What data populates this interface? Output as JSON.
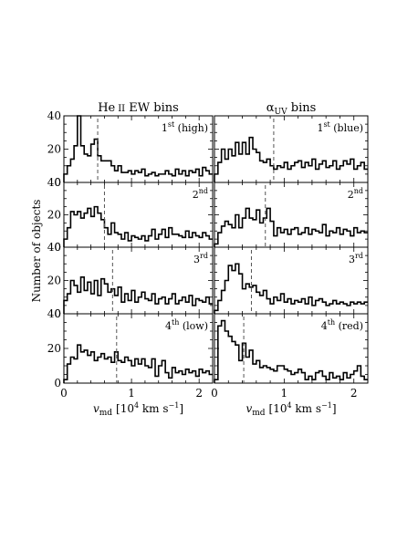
{
  "figure": {
    "ylabel": "Number of objects",
    "xlabel_main": "v",
    "xlabel_sub": "md",
    "xlabel_units": "[10",
    "xlabel_units_exp": "4",
    "xlabel_units_tail": " km s",
    "xlabel_units_exp2": "−1",
    "xlabel_units_close": "]",
    "x_ticks": [
      "0",
      "1",
      "2"
    ],
    "y_ticks": [
      "0",
      "20",
      "40"
    ]
  },
  "chart_data": {
    "type": "histogram",
    "layout": "4 rows x 2 columns, shared axes",
    "x_range": [
      0,
      2.2
    ],
    "y_range": [
      0,
      40
    ],
    "bin_width": 0.05,
    "bin_start": 0.0,
    "columns": [
      {
        "title_main": "He",
        "title_roman": "II",
        "title_rest": " EW bins",
        "panels": [
          {
            "ord": "1",
            "sup": "st",
            "tag": " (high)",
            "median": 0.5,
            "counts": [
              5,
              10,
              14,
              22,
              40,
              22,
              17,
              16,
              23,
              26,
              16,
              13,
              13,
              13,
              10,
              7,
              10,
              6,
              6,
              7,
              5,
              7,
              6,
              8,
              4,
              5,
              6,
              4,
              5,
              5,
              7,
              5,
              4,
              8,
              5,
              7,
              4,
              7,
              6,
              8,
              4,
              9,
              7,
              5
            ]
          },
          {
            "ord": "2",
            "sup": "nd",
            "tag": "",
            "median": 0.6,
            "counts": [
              5,
              12,
              22,
              20,
              22,
              18,
              21,
              24,
              19,
              25,
              21,
              17,
              12,
              8,
              15,
              9,
              8,
              5,
              9,
              4,
              7,
              6,
              5,
              7,
              4,
              7,
              11,
              5,
              8,
              11,
              6,
              12,
              8,
              8,
              7,
              6,
              10,
              6,
              9,
              7,
              6,
              9,
              7,
              5
            ]
          },
          {
            "ord": "3",
            "sup": "rd",
            "tag": "",
            "median": 0.72,
            "counts": [
              8,
              12,
              20,
              17,
              13,
              22,
              14,
              19,
              12,
              20,
              11,
              21,
              18,
              13,
              15,
              11,
              16,
              7,
              12,
              8,
              14,
              7,
              10,
              13,
              9,
              8,
              12,
              6,
              9,
              10,
              6,
              9,
              12,
              6,
              8,
              10,
              7,
              11,
              5,
              9,
              8,
              7,
              10,
              6
            ]
          },
          {
            "ord": "4",
            "sup": "th",
            "tag": " (low)",
            "median": 0.78,
            "counts": [
              2,
              11,
              15,
              14,
              22,
              18,
              19,
              16,
              18,
              13,
              15,
              17,
              14,
              15,
              12,
              18,
              13,
              12,
              15,
              13,
              10,
              14,
              11,
              14,
              10,
              9,
              14,
              4,
              10,
              13,
              6,
              3,
              9,
              6,
              7,
              5,
              8,
              6,
              7,
              4,
              8,
              6,
              7,
              5
            ]
          }
        ]
      },
      {
        "title_main": "α",
        "title_roman": "UV",
        "title_rest": " bins",
        "panels": [
          {
            "ord": "1",
            "sup": "st",
            "tag": " (blue)",
            "median": 0.85,
            "counts": [
              5,
              12,
              20,
              14,
              20,
              16,
              24,
              17,
              24,
              17,
              27,
              20,
              18,
              13,
              12,
              14,
              10,
              8,
              10,
              9,
              12,
              8,
              10,
              12,
              13,
              9,
              12,
              10,
              14,
              8,
              11,
              13,
              9,
              10,
              13,
              8,
              10,
              13,
              11,
              14,
              8,
              10,
              12,
              8
            ]
          },
          {
            "ord": "2",
            "sup": "nd",
            "tag": "",
            "median": 0.73,
            "counts": [
              2,
              9,
              13,
              16,
              14,
              12,
              20,
              12,
              18,
              24,
              18,
              17,
              23,
              15,
              18,
              24,
              16,
              7,
              12,
              9,
              11,
              8,
              11,
              12,
              8,
              9,
              12,
              8,
              11,
              10,
              9,
              14,
              7,
              10,
              9,
              12,
              8,
              11,
              10,
              7,
              12,
              9,
              10,
              9
            ]
          },
          {
            "ord": "3",
            "sup": "rd",
            "tag": "",
            "median": 0.53,
            "counts": [
              2,
              8,
              14,
              20,
              29,
              26,
              30,
              24,
              15,
              18,
              16,
              17,
              13,
              11,
              14,
              9,
              6,
              10,
              8,
              12,
              7,
              9,
              6,
              8,
              7,
              9,
              6,
              10,
              5,
              8,
              9,
              7,
              5,
              6,
              8,
              6,
              7,
              6,
              5,
              7,
              6,
              7,
              6,
              7
            ]
          },
          {
            "ord": "4",
            "sup": "th",
            "tag": " (red)",
            "median": 0.42,
            "counts": [
              2,
              33,
              36,
              30,
              27,
              24,
              22,
              13,
              23,
              15,
              19,
              11,
              13,
              9,
              10,
              9,
              8,
              7,
              10,
              10,
              8,
              7,
              5,
              6,
              8,
              6,
              2,
              4,
              2,
              6,
              7,
              4,
              2,
              6,
              3,
              4,
              2,
              6,
              3,
              5,
              7,
              10,
              4,
              2
            ]
          }
        ]
      }
    ]
  }
}
